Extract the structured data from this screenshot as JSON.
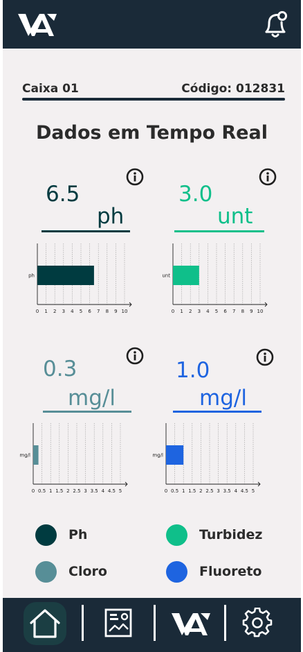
{
  "header": {
    "logo_icon": "wa-logo-icon",
    "notification_icon": "bell-notification-icon"
  },
  "box": {
    "name": "Caixa 01",
    "code": "Código: 012831"
  },
  "page_title": "Dados em Tempo Real",
  "colors": {
    "ph": "#003b40",
    "turbidez": "#0fbf8a",
    "cloro": "#578e97",
    "fluoreto": "#1e64e0",
    "dark": "#1a2a38"
  },
  "metrics": [
    {
      "id": "ph",
      "value": "6.5",
      "unit": "ph",
      "info_icon": "info-icon"
    },
    {
      "id": "turbidez",
      "value": "3.0",
      "unit": "unt",
      "info_icon": "info-icon"
    },
    {
      "id": "cloro",
      "value": "0.3",
      "unit": "mg/l",
      "info_icon": "info-icon"
    },
    {
      "id": "fluoreto",
      "value": "1.0",
      "unit": "mg/l",
      "info_icon": "info-icon"
    }
  ],
  "chart_data": [
    {
      "type": "bar",
      "orientation": "horizontal",
      "categories": [
        "ph"
      ],
      "values": [
        6.5
      ],
      "xlim": [
        0,
        10
      ],
      "ticks": [
        "0",
        "1",
        "2",
        "3",
        "4",
        "5",
        "6",
        "7",
        "8",
        "9",
        "10"
      ],
      "grid": true,
      "color": "#003b40"
    },
    {
      "type": "bar",
      "orientation": "horizontal",
      "categories": [
        "unt"
      ],
      "values": [
        3.0
      ],
      "xlim": [
        0,
        10
      ],
      "ticks": [
        "0",
        "1",
        "2",
        "3",
        "4",
        "5",
        "6",
        "7",
        "8",
        "9",
        "10"
      ],
      "grid": true,
      "color": "#0fbf8a"
    },
    {
      "type": "bar",
      "orientation": "horizontal",
      "categories": [
        "mg/l"
      ],
      "values": [
        0.3
      ],
      "xlim": [
        0,
        5
      ],
      "ticks": [
        "0",
        "0.5",
        "1",
        "1.5",
        "2",
        "2.5",
        "3",
        "3.5",
        "4",
        "4.5",
        "5"
      ],
      "grid": true,
      "color": "#578e97"
    },
    {
      "type": "bar",
      "orientation": "horizontal",
      "categories": [
        "mg/l"
      ],
      "values": [
        1.0
      ],
      "xlim": [
        0,
        5
      ],
      "ticks": [
        "0",
        "0.5",
        "1",
        "1.5",
        "2",
        "2.5",
        "3",
        "3.5",
        "4",
        "4.5",
        "5"
      ],
      "grid": true,
      "color": "#1e64e0"
    }
  ],
  "legend": [
    {
      "label": "Ph",
      "color": "#003b40"
    },
    {
      "label": "Turbidez",
      "color": "#0fbf8a"
    },
    {
      "label": "Cloro",
      "color": "#578e97"
    },
    {
      "label": "Fluoreto",
      "color": "#1e64e0"
    }
  ],
  "nav": {
    "items": [
      "home-icon",
      "report-image-icon",
      "wa-logo-icon",
      "settings-gear-icon"
    ]
  }
}
